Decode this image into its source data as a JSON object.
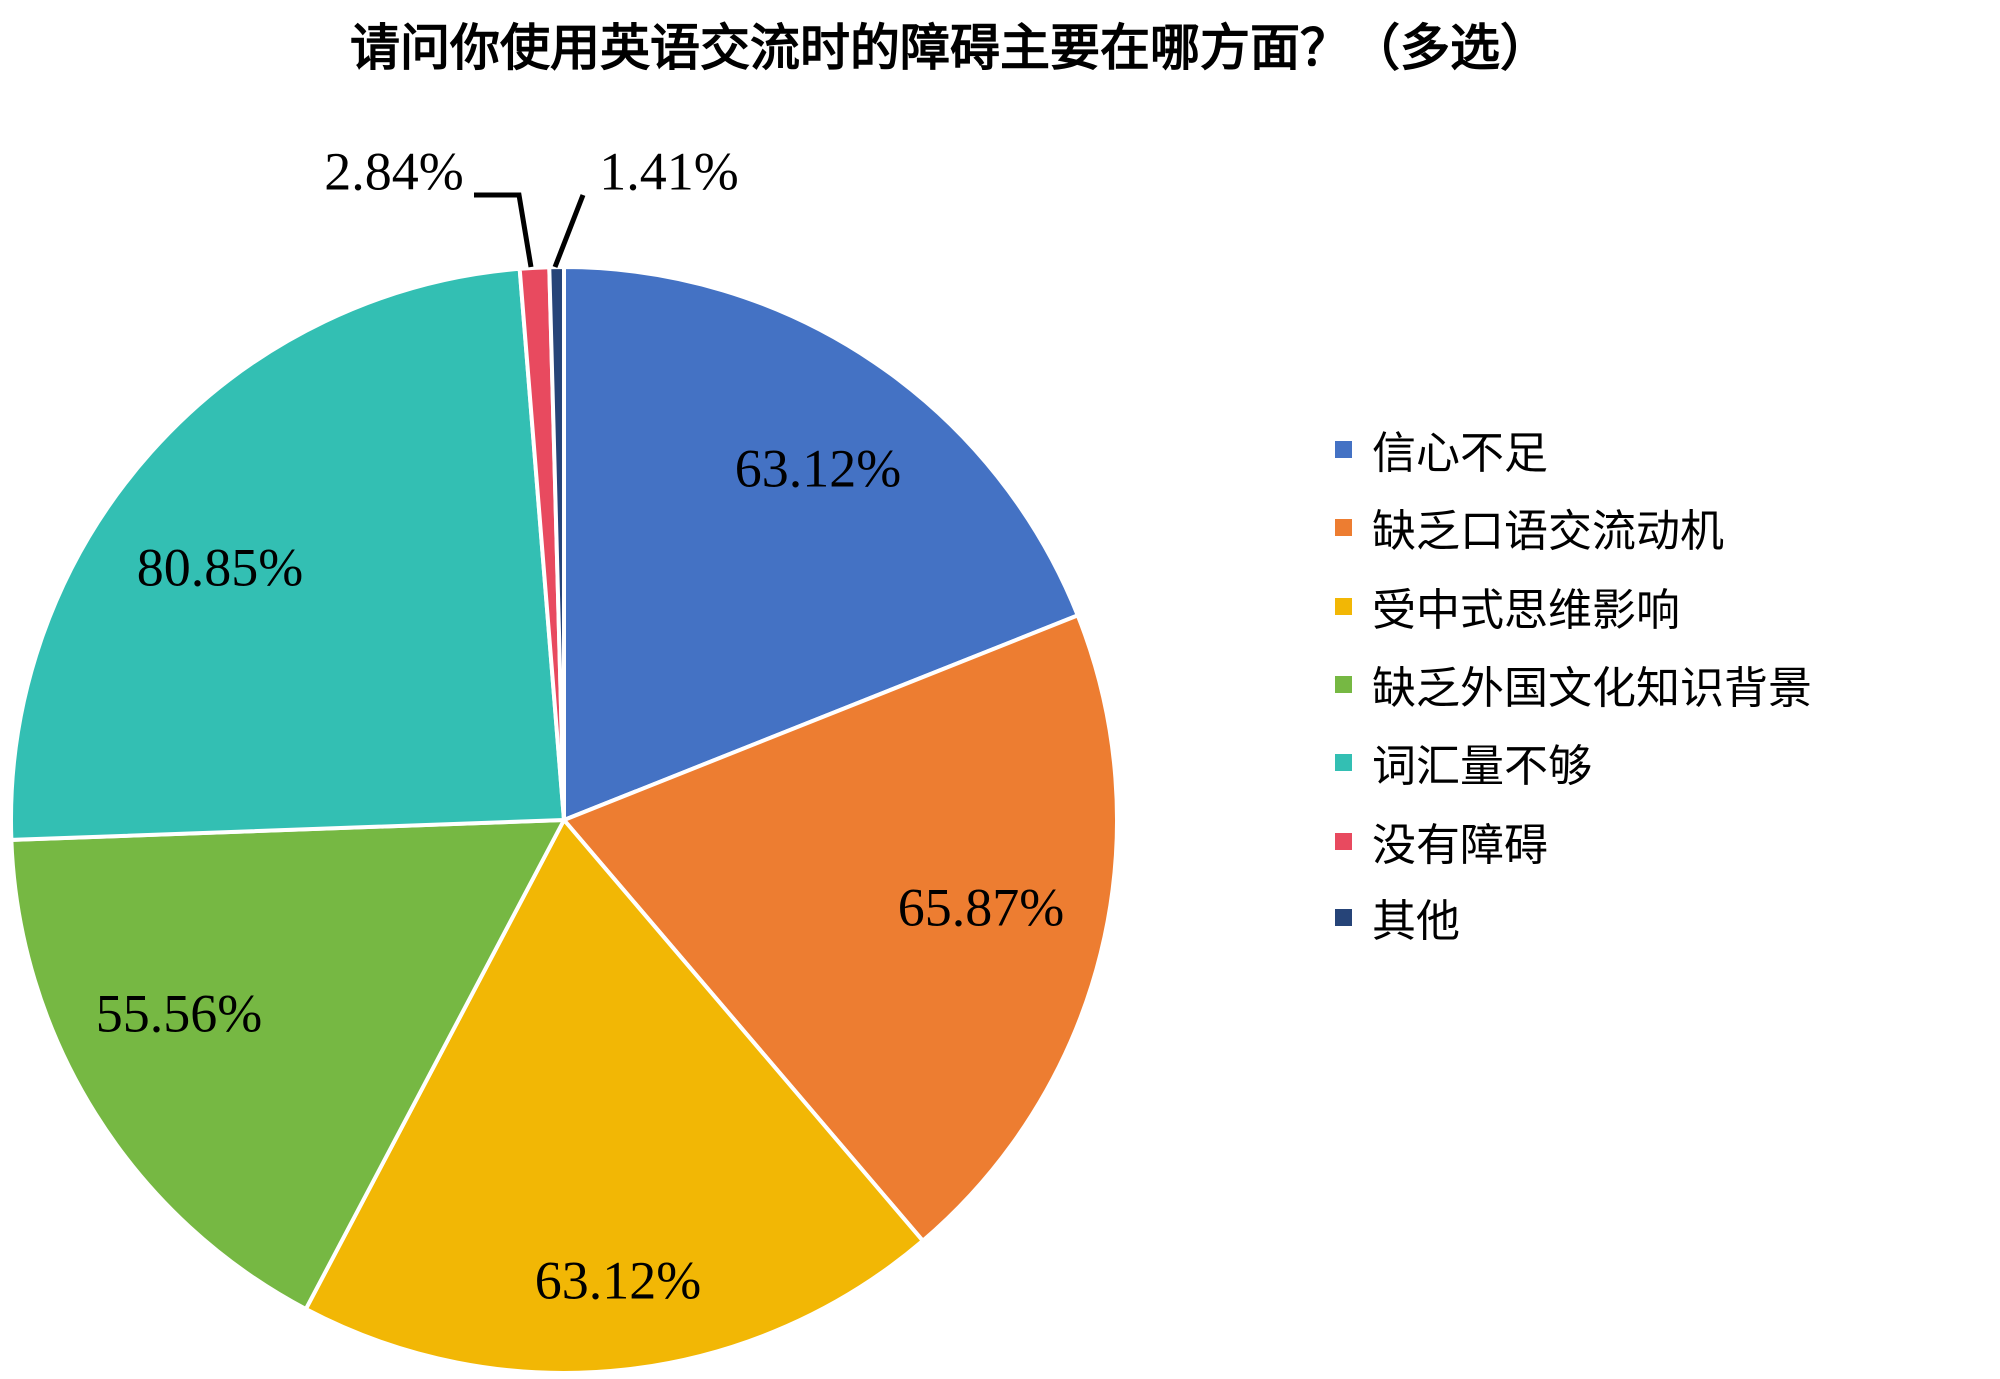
{
  "chart_data": {
    "type": "pie",
    "title": "请问你使用英语交流时的障碍主要在哪方面？（多选）",
    "categories": [
      "信心不足",
      "缺乏口语交流动机",
      "受中式思维影响",
      "缺乏外国文化知识背景",
      "词汇量不够",
      "没有障碍",
      "其他"
    ],
    "values": [
      63.12,
      65.87,
      63.12,
      55.56,
      80.85,
      2.84,
      1.41
    ],
    "data_labels": [
      "63.12%",
      "65.87%",
      "63.12%",
      "55.56%",
      "80.85%",
      "2.84%",
      "1.41%"
    ],
    "colors": [
      "#4472C4",
      "#ED7D31",
      "#F2B705",
      "#76B843",
      "#33BFB3",
      "#E84A5F",
      "#264478"
    ],
    "start_angle": "12 o'clock",
    "direction": "clockwise",
    "legend": "right"
  }
}
